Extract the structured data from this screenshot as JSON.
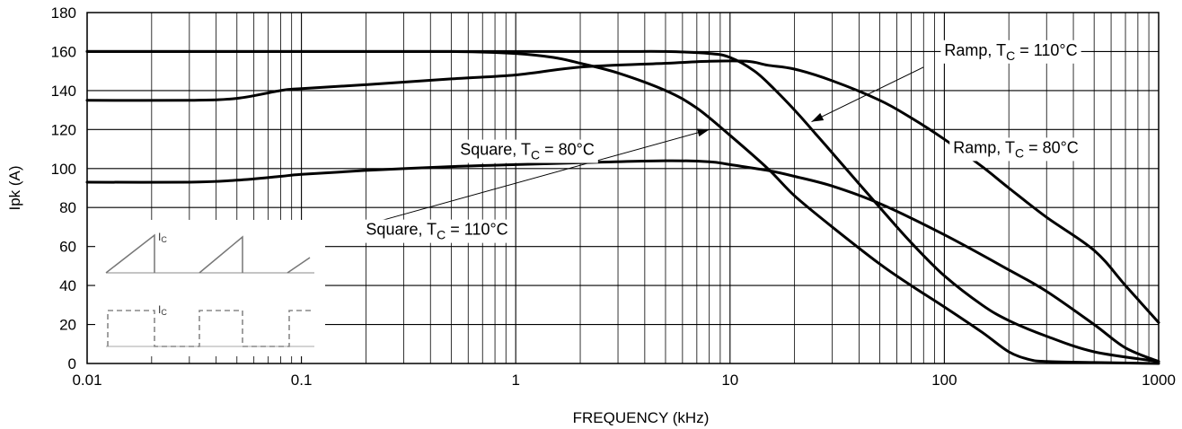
{
  "chart_data": {
    "type": "line",
    "xscale": "log",
    "xlabel": "FREQUENCY (kHz)",
    "ylabel": "Ipk (A)",
    "xlim": [
      0.01,
      1000
    ],
    "ylim": [
      0,
      180
    ],
    "yticks": [
      0,
      20,
      40,
      60,
      80,
      100,
      120,
      140,
      160,
      180
    ],
    "xticks": [
      {
        "value": 0.01,
        "label": "0.01"
      },
      {
        "value": 0.1,
        "label": "0.1"
      },
      {
        "value": 1,
        "label": "1"
      },
      {
        "value": 10,
        "label": "10"
      },
      {
        "value": 100,
        "label": "100"
      },
      {
        "value": 1000,
        "label": "1000"
      }
    ],
    "grid": true,
    "series": [
      {
        "points": [
          [
            0.01,
            160
          ],
          [
            0.1,
            160
          ],
          [
            0.5,
            160
          ],
          [
            1,
            159
          ],
          [
            1.5,
            157
          ],
          [
            2,
            154
          ],
          [
            3,
            149
          ],
          [
            5,
            140
          ],
          [
            7,
            131
          ],
          [
            10,
            117
          ],
          [
            15,
            100
          ],
          [
            20,
            86
          ],
          [
            30,
            70
          ],
          [
            50,
            51
          ],
          [
            70,
            40
          ],
          [
            100,
            29
          ],
          [
            150,
            16
          ],
          [
            200,
            6
          ],
          [
            250,
            2
          ],
          [
            300,
            1
          ],
          [
            500,
            0.5
          ],
          [
            1000,
            0
          ]
        ]
      },
      {
        "points": [
          [
            0.01,
            160
          ],
          [
            0.1,
            160
          ],
          [
            0.5,
            160
          ],
          [
            1,
            160
          ],
          [
            3,
            160
          ],
          [
            5,
            160
          ],
          [
            8,
            159
          ],
          [
            10,
            157
          ],
          [
            13,
            150
          ],
          [
            16,
            141
          ],
          [
            20,
            130
          ],
          [
            25,
            118
          ],
          [
            30,
            108
          ],
          [
            50,
            80
          ],
          [
            70,
            62
          ],
          [
            100,
            45
          ],
          [
            150,
            30
          ],
          [
            200,
            22
          ],
          [
            300,
            14
          ],
          [
            500,
            6
          ],
          [
            1000,
            1
          ]
        ]
      },
      {
        "points": [
          [
            0.01,
            135
          ],
          [
            0.03,
            135
          ],
          [
            0.05,
            136
          ],
          [
            0.08,
            140
          ],
          [
            0.1,
            141
          ],
          [
            0.2,
            143
          ],
          [
            0.5,
            146
          ],
          [
            1,
            148
          ],
          [
            2,
            152
          ],
          [
            5,
            154
          ],
          [
            8,
            155
          ],
          [
            12,
            155
          ],
          [
            15,
            153
          ],
          [
            20,
            151
          ],
          [
            30,
            145
          ],
          [
            50,
            135
          ],
          [
            70,
            126
          ],
          [
            100,
            115
          ],
          [
            150,
            101
          ],
          [
            200,
            90
          ],
          [
            300,
            75
          ],
          [
            500,
            58
          ],
          [
            700,
            40
          ],
          [
            1000,
            21
          ]
        ]
      },
      {
        "points": [
          [
            0.01,
            93
          ],
          [
            0.03,
            93
          ],
          [
            0.05,
            94
          ],
          [
            0.08,
            96
          ],
          [
            0.1,
            97
          ],
          [
            0.2,
            99
          ],
          [
            0.5,
            101
          ],
          [
            1,
            102
          ],
          [
            2,
            103
          ],
          [
            5,
            104
          ],
          [
            8,
            103.5
          ],
          [
            10,
            102
          ],
          [
            15,
            99
          ],
          [
            20,
            96
          ],
          [
            30,
            91
          ],
          [
            50,
            82
          ],
          [
            100,
            66
          ],
          [
            200,
            48
          ],
          [
            300,
            37
          ],
          [
            500,
            20
          ],
          [
            700,
            8
          ],
          [
            1000,
            1
          ]
        ]
      }
    ],
    "annotations": [
      {
        "main": "Square, T",
        "sub": "C",
        "rest": " = 80°C",
        "x": 0.55,
        "y": 107
      },
      {
        "main": "Square, T",
        "sub": "C",
        "rest": " = 110°C",
        "x": 0.2,
        "y": 66
      },
      {
        "main": "Ramp, T",
        "sub": "C",
        "rest": " = 110°C",
        "x": 100,
        "y": 158
      },
      {
        "main": "Ramp, T",
        "sub": "C",
        "rest": " = 80°C",
        "x": 110,
        "y": 108
      }
    ],
    "arrows": [
      {
        "from": [
          0.23,
          73
        ],
        "to": [
          8,
          120
        ]
      },
      {
        "from": [
          80,
          152
        ],
        "to": [
          24,
          124
        ]
      }
    ],
    "inset": {
      "top_label": "I",
      "top_label_sub": "C",
      "bottom_label": "I",
      "bottom_label_sub": "C"
    }
  }
}
